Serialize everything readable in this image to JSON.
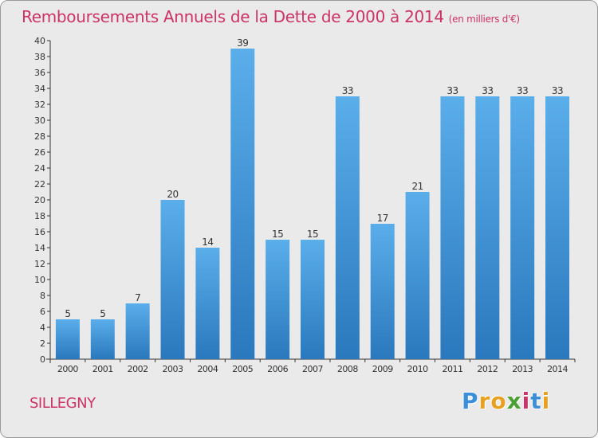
{
  "title": "Remboursements Annuels de la Dette de 2000 à 2014",
  "unit": "(en milliers d'€)",
  "place": "SILLEGNY",
  "brand": {
    "letters": [
      "P",
      "r",
      "o",
      "x",
      "i",
      "t",
      "i"
    ],
    "colors": [
      "#3a8fd8",
      "#e8a020",
      "#e8a020",
      "#4aa030",
      "#cc3366",
      "#3a8fd8",
      "#e8a020"
    ]
  },
  "colors": {
    "bar": "#3d94dd",
    "bar_light": "#5aaeea",
    "bar_dark": "#2a78bd",
    "title": "#cc3366",
    "background": "#eaeaea"
  },
  "chart_data": {
    "type": "bar",
    "categories": [
      "2000",
      "2001",
      "2002",
      "2003",
      "2004",
      "2005",
      "2006",
      "2007",
      "2008",
      "2009",
      "2010",
      "2011",
      "2012",
      "2013",
      "2014"
    ],
    "values": [
      5,
      5,
      7,
      20,
      14,
      39,
      15,
      15,
      33,
      17,
      21,
      33,
      33,
      33,
      33
    ],
    "ylim": [
      0,
      40
    ],
    "yticks": [
      0,
      2,
      4,
      6,
      8,
      10,
      12,
      14,
      16,
      18,
      20,
      22,
      24,
      26,
      28,
      30,
      32,
      34,
      36,
      38,
      40
    ],
    "grid": false,
    "data_labels": true
  }
}
